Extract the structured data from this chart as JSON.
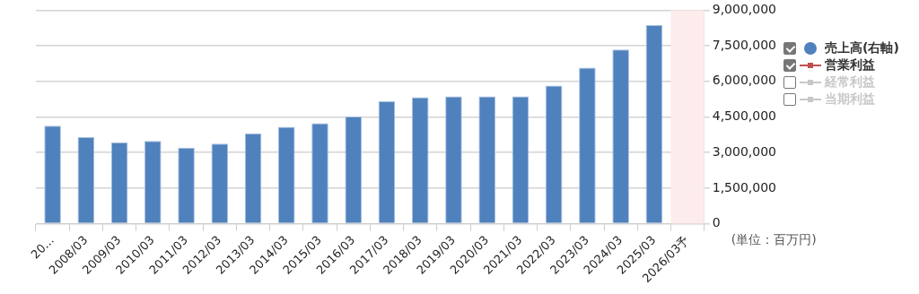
{
  "chart_data": {
    "type": "bar",
    "categories": [
      "20…",
      "2008/03",
      "2009/03",
      "2010/03",
      "2011/03",
      "2012/03",
      "2013/03",
      "2014/03",
      "2015/03",
      "2016/03",
      "2017/03",
      "2018/03",
      "2019/03",
      "2020/03",
      "2021/03",
      "2022/03",
      "2023/03",
      "2024/03",
      "2025/03",
      "2026/03予"
    ],
    "series": [
      {
        "name": "売上高(右軸)",
        "axis": "y2",
        "color": "#4f81bd",
        "values": [
          4130000,
          3650000,
          3430000,
          3490000,
          3210000,
          3380000,
          3810000,
          4080000,
          4240000,
          4520000,
          5160000,
          5330000,
          5370000,
          5370000,
          5370000,
          5820000,
          6580000,
          7340000,
          8370000,
          null
        ]
      },
      {
        "name": "営業利益",
        "type": "line",
        "color": "#c0504d",
        "values": [
          null,
          null,
          null,
          null,
          null,
          null,
          null,
          null,
          null,
          null,
          null,
          null,
          null,
          null,
          null,
          null,
          null,
          null,
          null,
          null
        ]
      },
      {
        "name": "経常利益",
        "type": "line",
        "color": "#c8c8c8",
        "values": [
          null,
          null,
          null,
          null,
          null,
          null,
          null,
          null,
          null,
          null,
          null,
          null,
          null,
          null,
          null,
          null,
          null,
          null,
          null,
          null
        ]
      },
      {
        "name": "当期利益",
        "type": "line",
        "color": "#c8c8c8",
        "values": [
          null,
          null,
          null,
          null,
          null,
          null,
          null,
          null,
          null,
          null,
          null,
          null,
          null,
          null,
          null,
          null,
          null,
          null,
          null,
          null
        ]
      }
    ],
    "y2lim": [
      0,
      9000000
    ],
    "y2ticks": [
      0,
      {
        "value": 1500000,
        "label": "1,500,000"
      },
      {
        "value": 3000000,
        "label": "3,000,000"
      },
      {
        "value": 4500000,
        "label": "4,500,000"
      },
      {
        "value": 6000000,
        "label": "6,000,000"
      },
      {
        "value": 7500000,
        "label": "7,500,000"
      },
      {
        "value": 9000000,
        "label": "9,000,000"
      }
    ],
    "bands": [
      {
        "axis": "x",
        "from": "2026/03予",
        "to": "2026/03予",
        "color": "#fdecec"
      }
    ],
    "annotations": [
      "(単位：百万円)"
    ],
    "grid": true,
    "legend": "right"
  }
}
